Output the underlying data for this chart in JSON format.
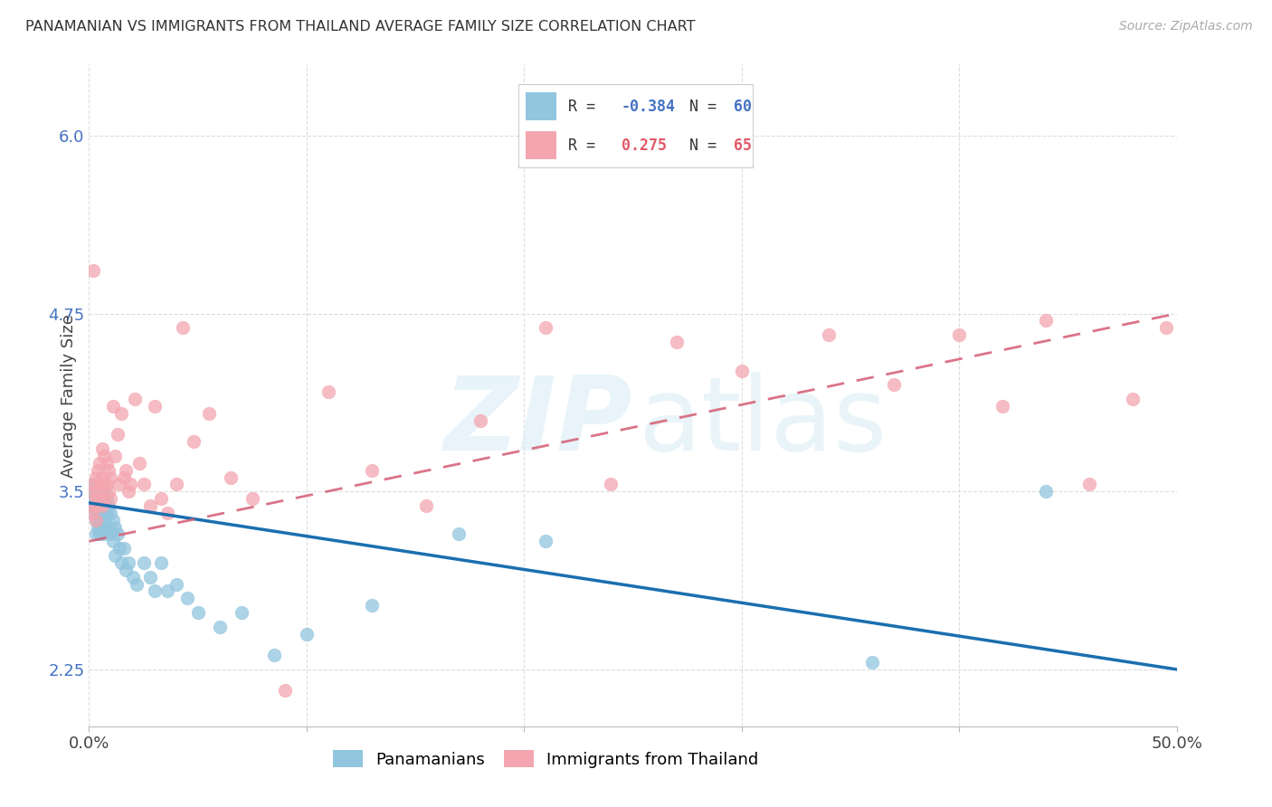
{
  "title": "PANAMANIAN VS IMMIGRANTS FROM THAILAND AVERAGE FAMILY SIZE CORRELATION CHART",
  "source": "Source: ZipAtlas.com",
  "ylabel": "Average Family Size",
  "legend_blue_r": "-0.384",
  "legend_blue_n": "60",
  "legend_pink_r": "0.275",
  "legend_pink_n": "65",
  "blue_color": "#92c5de",
  "pink_color": "#f4a6b0",
  "blue_line_color": "#1a6faf",
  "pink_line_color": "#d45c72",
  "xlim": [
    0.0,
    0.5
  ],
  "ylim": [
    1.85,
    6.5
  ],
  "ytick_values": [
    2.25,
    3.5,
    4.75,
    6.0
  ],
  "blue_x": [
    0.001,
    0.001,
    0.002,
    0.002,
    0.002,
    0.003,
    0.003,
    0.003,
    0.003,
    0.004,
    0.004,
    0.004,
    0.004,
    0.005,
    0.005,
    0.005,
    0.005,
    0.006,
    0.006,
    0.006,
    0.006,
    0.007,
    0.007,
    0.007,
    0.007,
    0.008,
    0.008,
    0.009,
    0.009,
    0.01,
    0.01,
    0.011,
    0.011,
    0.012,
    0.012,
    0.013,
    0.014,
    0.015,
    0.016,
    0.017,
    0.018,
    0.02,
    0.022,
    0.025,
    0.028,
    0.03,
    0.033,
    0.036,
    0.04,
    0.045,
    0.05,
    0.06,
    0.07,
    0.085,
    0.1,
    0.13,
    0.17,
    0.21,
    0.36,
    0.44
  ],
  "blue_y": [
    3.4,
    3.5,
    3.45,
    3.55,
    3.35,
    3.5,
    3.4,
    3.3,
    3.2,
    3.45,
    3.35,
    3.55,
    3.25,
    3.5,
    3.4,
    3.3,
    3.2,
    3.55,
    3.45,
    3.35,
    3.25,
    3.5,
    3.4,
    3.3,
    3.2,
    3.45,
    3.35,
    3.4,
    3.25,
    3.35,
    3.2,
    3.3,
    3.15,
    3.25,
    3.05,
    3.2,
    3.1,
    3.0,
    3.1,
    2.95,
    3.0,
    2.9,
    2.85,
    3.0,
    2.9,
    2.8,
    3.0,
    2.8,
    2.85,
    2.75,
    2.65,
    2.55,
    2.65,
    2.35,
    2.5,
    2.7,
    3.2,
    3.15,
    2.3,
    3.5
  ],
  "pink_x": [
    0.001,
    0.001,
    0.002,
    0.002,
    0.002,
    0.003,
    0.003,
    0.003,
    0.004,
    0.004,
    0.004,
    0.005,
    0.005,
    0.005,
    0.006,
    0.006,
    0.006,
    0.007,
    0.007,
    0.007,
    0.008,
    0.008,
    0.009,
    0.009,
    0.01,
    0.01,
    0.011,
    0.012,
    0.013,
    0.014,
    0.015,
    0.016,
    0.017,
    0.018,
    0.019,
    0.021,
    0.023,
    0.025,
    0.028,
    0.03,
    0.033,
    0.036,
    0.04,
    0.043,
    0.048,
    0.055,
    0.065,
    0.075,
    0.09,
    0.11,
    0.13,
    0.155,
    0.18,
    0.21,
    0.24,
    0.27,
    0.3,
    0.34,
    0.37,
    0.4,
    0.42,
    0.44,
    0.46,
    0.48,
    0.495
  ],
  "pink_y": [
    3.5,
    3.35,
    3.55,
    3.4,
    5.05,
    3.6,
    3.45,
    3.3,
    3.65,
    3.5,
    3.4,
    3.7,
    3.55,
    3.45,
    3.8,
    3.6,
    3.4,
    3.75,
    3.55,
    3.45,
    3.7,
    3.55,
    3.65,
    3.5,
    3.6,
    3.45,
    4.1,
    3.75,
    3.9,
    3.55,
    4.05,
    3.6,
    3.65,
    3.5,
    3.55,
    4.15,
    3.7,
    3.55,
    3.4,
    4.1,
    3.45,
    3.35,
    3.55,
    4.65,
    3.85,
    4.05,
    3.6,
    3.45,
    2.1,
    4.2,
    3.65,
    3.4,
    4.0,
    4.65,
    3.55,
    4.55,
    4.35,
    4.6,
    4.25,
    4.6,
    4.1,
    4.7,
    3.55,
    4.15,
    4.65
  ]
}
